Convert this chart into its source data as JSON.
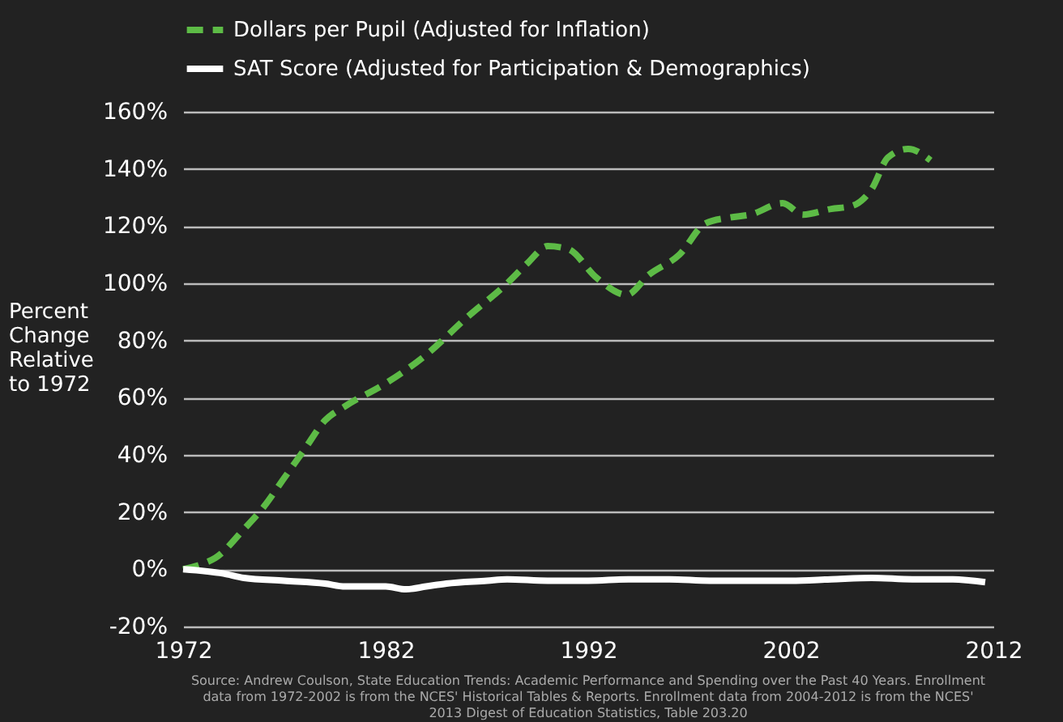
{
  "chart_data": {
    "type": "line",
    "ylabel": "Percent Change Relative to 1972",
    "xlim": [
      1972,
      2012
    ],
    "xticks": [
      1972,
      1982,
      1992,
      2002,
      2012
    ],
    "ylim": [
      -20,
      160
    ],
    "yticks": [
      {
        "value": -20,
        "label": "-20%"
      },
      {
        "value": 0,
        "label": "0%"
      },
      {
        "value": 20,
        "label": "20%"
      },
      {
        "value": 40,
        "label": "40%"
      },
      {
        "value": 60,
        "label": "60%"
      },
      {
        "value": 80,
        "label": "80%"
      },
      {
        "value": 100,
        "label": "100%"
      },
      {
        "value": 120,
        "label": "120%"
      },
      {
        "value": 140,
        "label": "140%"
      },
      {
        "value": 160,
        "label": "160%"
      }
    ],
    "grid": "y",
    "legend": "top",
    "marker": "none",
    "series": [
      {
        "name": "Dollars per Pupil (Adjusted for Inflation)",
        "color": "#5dbb46",
        "line_style": "dashed",
        "x": [
          1972,
          1973,
          1973.6,
          1975,
          1976,
          1977,
          1978,
          1979,
          1980,
          1982,
          1984,
          1986,
          1988,
          1989,
          1990,
          1991,
          1992.4,
          1993.9,
          1995,
          1996.5,
          1997.8,
          1999,
          2000,
          2001.6,
          2002.6,
          2004,
          2005,
          2006,
          2006.8,
          2007.8,
          2008.9
        ],
        "values": [
          0,
          2,
          4,
          14,
          22,
          32,
          42,
          52,
          57,
          65,
          75,
          88,
          100,
          107,
          113,
          112,
          102,
          96,
          103,
          110,
          121,
          123,
          124,
          128,
          124,
          126,
          127,
          133,
          144,
          147,
          143
        ]
      },
      {
        "name": "SAT Score (Adjusted for Participation & Demographics)",
        "color": "#ffffff",
        "line_style": "solid",
        "x": [
          1972,
          1974,
          1975,
          1977,
          1979,
          1980,
          1982,
          1983,
          1984,
          1985,
          1987,
          1988,
          1990,
          1992,
          1994,
          1996,
          1998,
          2000,
          2002,
          2004,
          2006,
          2008,
          2010,
          2011.6
        ],
        "values": [
          0,
          -1.5,
          -3,
          -4,
          -5,
          -6,
          -6,
          -7,
          -6,
          -5,
          -4,
          -3.5,
          -4,
          -4,
          -3.5,
          -3.5,
          -4,
          -4,
          -4,
          -3.5,
          -3,
          -3.5,
          -3.5,
          -4.5
        ]
      }
    ],
    "annotations": [
      "Source: Andrew Coulson, State Education Trends: Academic Performance and Spending over the Past 40 Years. Enrollment data from 1972-2002 is from the NCES' Historical Tables & Reports. Enrollment data from 2004-2012 is from the NCES' 2013 Digest of Education Statistics, Table 203.20"
    ]
  }
}
